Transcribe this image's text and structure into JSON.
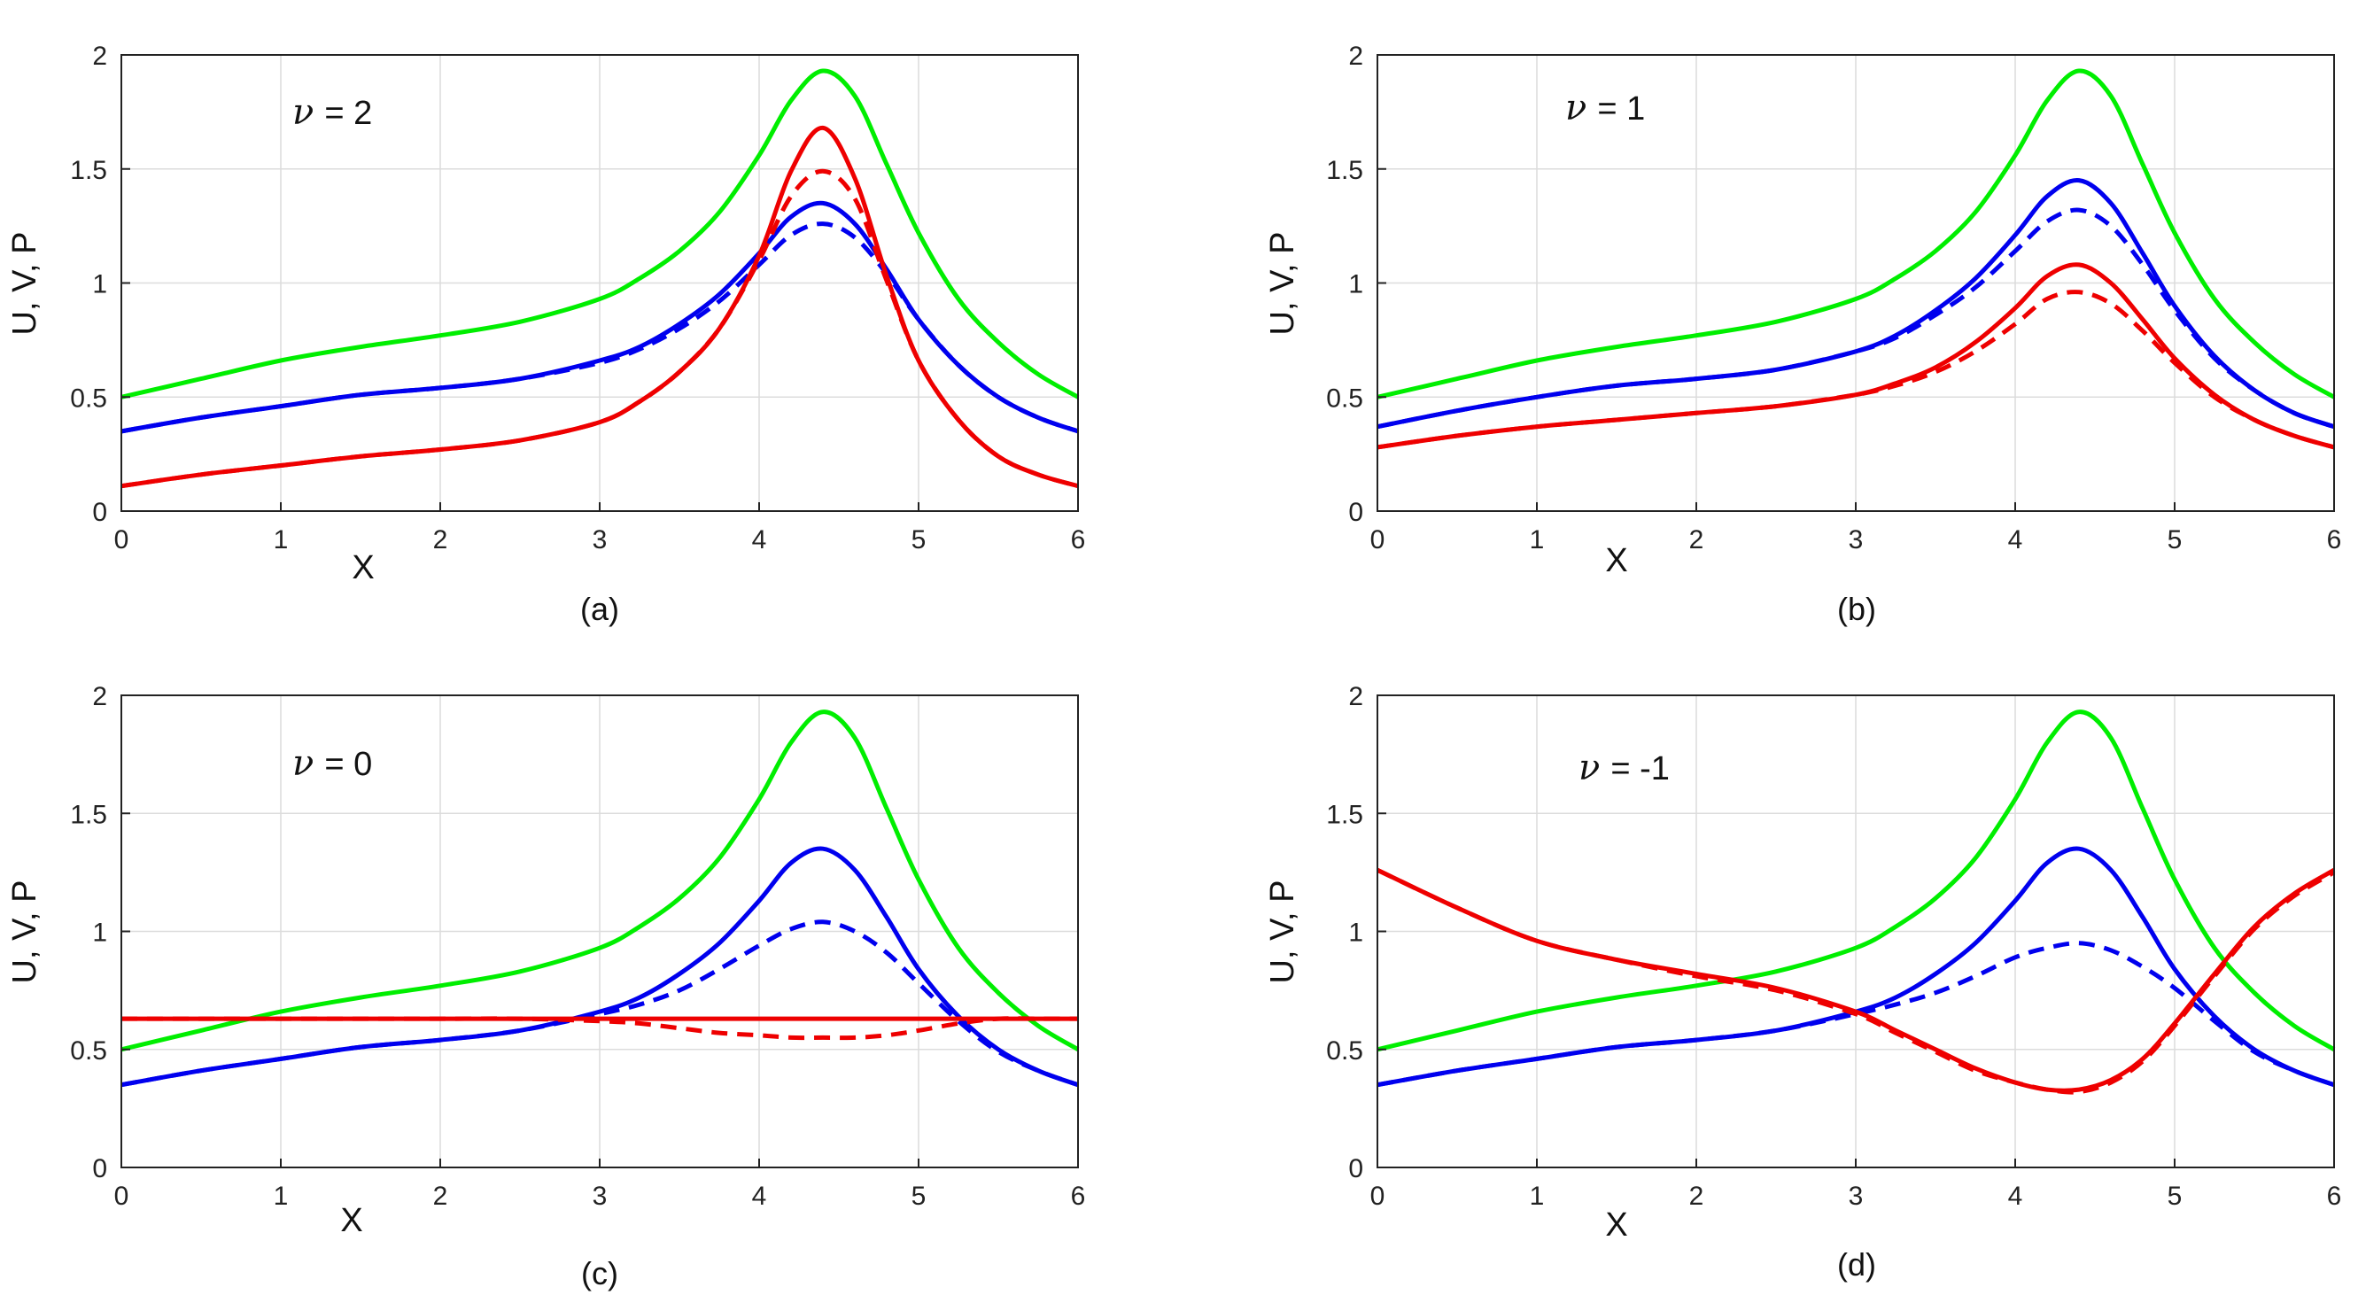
{
  "figure": {
    "colors": {
      "U": "#00ee00",
      "V": "#0000ee",
      "P": "#ee0000",
      "grid": "#dcdcdc",
      "axis": "#222222"
    }
  },
  "chart_data": [
    {
      "type": "line",
      "caption": "(a)",
      "annotation_symbol": "ν",
      "annotation_value": "= 2",
      "xlabel": "X",
      "ylabel": "U, V, P",
      "xlim": [
        0,
        6
      ],
      "ylim": [
        0,
        2
      ],
      "xticks": [
        "0",
        "1",
        "2",
        "3",
        "4",
        "5",
        "6"
      ],
      "yticks": [
        "0",
        "0.5",
        "1",
        "1.5",
        "2"
      ],
      "grid": true,
      "x": [
        0,
        0.5,
        1,
        1.5,
        2,
        2.5,
        3,
        3.25,
        3.5,
        3.75,
        4,
        4.2,
        4.4,
        4.6,
        4.8,
        5,
        5.25,
        5.5,
        5.75,
        6
      ],
      "series": [
        {
          "name": "U",
          "color": "#00ee00",
          "style": "solid",
          "values": [
            0.5,
            0.58,
            0.66,
            0.72,
            0.77,
            0.83,
            0.93,
            1.02,
            1.14,
            1.31,
            1.56,
            1.8,
            1.93,
            1.82,
            1.52,
            1.22,
            0.93,
            0.74,
            0.6,
            0.5
          ]
        },
        {
          "name": "V",
          "color": "#0000ee",
          "style": "solid",
          "values": [
            0.35,
            0.41,
            0.46,
            0.51,
            0.54,
            0.58,
            0.66,
            0.72,
            0.82,
            0.95,
            1.13,
            1.29,
            1.35,
            1.26,
            1.06,
            0.84,
            0.64,
            0.5,
            0.41,
            0.35
          ]
        },
        {
          "name": "V (dashed)",
          "color": "#0000ee",
          "style": "dashed",
          "values": [
            0.35,
            0.41,
            0.46,
            0.51,
            0.54,
            0.58,
            0.65,
            0.71,
            0.8,
            0.92,
            1.08,
            1.21,
            1.26,
            1.2,
            1.04,
            0.84,
            0.64,
            0.5,
            0.41,
            0.35
          ]
        },
        {
          "name": "P",
          "color": "#ee0000",
          "style": "solid",
          "values": [
            0.11,
            0.16,
            0.2,
            0.24,
            0.27,
            0.31,
            0.39,
            0.48,
            0.61,
            0.8,
            1.12,
            1.49,
            1.68,
            1.46,
            1.03,
            0.66,
            0.4,
            0.24,
            0.16,
            0.11
          ]
        },
        {
          "name": "P (dashed)",
          "color": "#ee0000",
          "style": "dashed",
          "values": [
            0.11,
            0.16,
            0.2,
            0.24,
            0.27,
            0.31,
            0.39,
            0.48,
            0.61,
            0.8,
            1.1,
            1.38,
            1.49,
            1.37,
            1.01,
            0.66,
            0.4,
            0.24,
            0.16,
            0.11
          ]
        }
      ]
    },
    {
      "type": "line",
      "caption": "(b)",
      "annotation_symbol": "ν",
      "annotation_value": "= 1",
      "xlabel": "X",
      "ylabel": "U, V, P",
      "xlim": [
        0,
        6
      ],
      "ylim": [
        0,
        2
      ],
      "xticks": [
        "0",
        "1",
        "2",
        "3",
        "4",
        "5",
        "6"
      ],
      "yticks": [
        "0",
        "0.5",
        "1",
        "1.5",
        "2"
      ],
      "grid": true,
      "x": [
        0,
        0.5,
        1,
        1.5,
        2,
        2.5,
        3,
        3.25,
        3.5,
        3.75,
        4,
        4.2,
        4.4,
        4.6,
        4.8,
        5,
        5.25,
        5.5,
        5.75,
        6
      ],
      "series": [
        {
          "name": "U",
          "color": "#00ee00",
          "style": "solid",
          "values": [
            0.5,
            0.58,
            0.66,
            0.72,
            0.77,
            0.83,
            0.93,
            1.02,
            1.14,
            1.31,
            1.56,
            1.8,
            1.93,
            1.82,
            1.52,
            1.22,
            0.93,
            0.74,
            0.6,
            0.5
          ]
        },
        {
          "name": "V",
          "color": "#0000ee",
          "style": "solid",
          "values": [
            0.37,
            0.44,
            0.5,
            0.55,
            0.58,
            0.62,
            0.7,
            0.77,
            0.88,
            1.02,
            1.21,
            1.38,
            1.45,
            1.35,
            1.13,
            0.9,
            0.68,
            0.53,
            0.43,
            0.37
          ]
        },
        {
          "name": "V (dashed)",
          "color": "#0000ee",
          "style": "dashed",
          "values": [
            0.37,
            0.44,
            0.5,
            0.55,
            0.58,
            0.62,
            0.7,
            0.76,
            0.86,
            0.98,
            1.14,
            1.27,
            1.32,
            1.25,
            1.08,
            0.88,
            0.67,
            0.53,
            0.43,
            0.37
          ]
        },
        {
          "name": "P",
          "color": "#ee0000",
          "style": "solid",
          "values": [
            0.28,
            0.33,
            0.37,
            0.4,
            0.43,
            0.46,
            0.51,
            0.56,
            0.63,
            0.74,
            0.89,
            1.03,
            1.08,
            1.0,
            0.84,
            0.67,
            0.51,
            0.4,
            0.33,
            0.28
          ]
        },
        {
          "name": "P (dashed)",
          "color": "#ee0000",
          "style": "dashed",
          "values": [
            0.28,
            0.33,
            0.37,
            0.4,
            0.43,
            0.46,
            0.51,
            0.55,
            0.61,
            0.7,
            0.82,
            0.93,
            0.96,
            0.91,
            0.79,
            0.65,
            0.5,
            0.4,
            0.33,
            0.28
          ]
        }
      ]
    },
    {
      "type": "line",
      "caption": "(c)",
      "annotation_symbol": "ν",
      "annotation_value": "= 0",
      "xlabel": "X",
      "ylabel": "U, V, P",
      "xlim": [
        0,
        6
      ],
      "ylim": [
        0,
        2
      ],
      "xticks": [
        "0",
        "1",
        "2",
        "3",
        "4",
        "5",
        "6"
      ],
      "yticks": [
        "0",
        "0.5",
        "1",
        "1.5",
        "2"
      ],
      "grid": true,
      "x": [
        0,
        0.5,
        1,
        1.5,
        2,
        2.5,
        3,
        3.25,
        3.5,
        3.75,
        4,
        4.2,
        4.4,
        4.6,
        4.8,
        5,
        5.25,
        5.5,
        5.75,
        6
      ],
      "series": [
        {
          "name": "U",
          "color": "#00ee00",
          "style": "solid",
          "values": [
            0.5,
            0.58,
            0.66,
            0.72,
            0.77,
            0.83,
            0.93,
            1.02,
            1.14,
            1.31,
            1.56,
            1.8,
            1.93,
            1.82,
            1.52,
            1.22,
            0.93,
            0.74,
            0.6,
            0.5
          ]
        },
        {
          "name": "V",
          "color": "#0000ee",
          "style": "solid",
          "values": [
            0.35,
            0.41,
            0.46,
            0.51,
            0.54,
            0.58,
            0.66,
            0.72,
            0.82,
            0.95,
            1.13,
            1.29,
            1.35,
            1.26,
            1.06,
            0.84,
            0.64,
            0.5,
            0.41,
            0.35
          ]
        },
        {
          "name": "V (dashed)",
          "color": "#0000ee",
          "style": "dashed",
          "values": [
            0.35,
            0.41,
            0.46,
            0.51,
            0.54,
            0.58,
            0.65,
            0.69,
            0.75,
            0.84,
            0.94,
            1.01,
            1.04,
            1.0,
            0.91,
            0.78,
            0.62,
            0.49,
            0.41,
            0.35
          ]
        },
        {
          "name": "P",
          "color": "#ee0000",
          "style": "solid",
          "values": [
            0.63,
            0.63,
            0.63,
            0.63,
            0.63,
            0.63,
            0.63,
            0.63,
            0.63,
            0.63,
            0.63,
            0.63,
            0.63,
            0.63,
            0.63,
            0.63,
            0.63,
            0.63,
            0.63,
            0.63
          ]
        },
        {
          "name": "P (dashed)",
          "color": "#ee0000",
          "style": "dashed",
          "values": [
            0.63,
            0.63,
            0.63,
            0.63,
            0.63,
            0.63,
            0.62,
            0.61,
            0.59,
            0.57,
            0.56,
            0.55,
            0.55,
            0.55,
            0.56,
            0.58,
            0.61,
            0.63,
            0.63,
            0.63
          ]
        }
      ]
    },
    {
      "type": "line",
      "caption": "(d)",
      "annotation_symbol": "ν",
      "annotation_value": "= -1",
      "xlabel": "X",
      "ylabel": "U, V, P",
      "xlim": [
        0,
        6
      ],
      "ylim": [
        0,
        2
      ],
      "xticks": [
        "0",
        "1",
        "2",
        "3",
        "4",
        "5",
        "6"
      ],
      "yticks": [
        "0",
        "0.5",
        "1",
        "1.5",
        "2"
      ],
      "grid": true,
      "x": [
        0,
        0.5,
        1,
        1.5,
        2,
        2.5,
        3,
        3.25,
        3.5,
        3.75,
        4,
        4.2,
        4.4,
        4.6,
        4.8,
        5,
        5.25,
        5.5,
        5.75,
        6
      ],
      "series": [
        {
          "name": "U",
          "color": "#00ee00",
          "style": "solid",
          "values": [
            0.5,
            0.58,
            0.66,
            0.72,
            0.77,
            0.83,
            0.93,
            1.02,
            1.14,
            1.31,
            1.56,
            1.8,
            1.93,
            1.82,
            1.52,
            1.22,
            0.93,
            0.74,
            0.6,
            0.5
          ]
        },
        {
          "name": "V",
          "color": "#0000ee",
          "style": "solid",
          "values": [
            0.35,
            0.41,
            0.46,
            0.51,
            0.54,
            0.58,
            0.66,
            0.72,
            0.82,
            0.95,
            1.13,
            1.29,
            1.35,
            1.26,
            1.06,
            0.84,
            0.64,
            0.5,
            0.41,
            0.35
          ]
        },
        {
          "name": "V (dashed)",
          "color": "#0000ee",
          "style": "dashed",
          "values": [
            0.35,
            0.41,
            0.46,
            0.51,
            0.54,
            0.58,
            0.65,
            0.69,
            0.74,
            0.81,
            0.89,
            0.93,
            0.95,
            0.92,
            0.85,
            0.76,
            0.62,
            0.49,
            0.41,
            0.35
          ]
        },
        {
          "name": "P",
          "color": "#ee0000",
          "style": "solid",
          "values": [
            1.26,
            1.1,
            0.96,
            0.88,
            0.82,
            0.76,
            0.66,
            0.58,
            0.5,
            0.42,
            0.36,
            0.33,
            0.33,
            0.37,
            0.46,
            0.61,
            0.82,
            1.02,
            1.16,
            1.26
          ]
        },
        {
          "name": "P (dashed)",
          "color": "#ee0000",
          "style": "dashed",
          "values": [
            1.26,
            1.1,
            0.96,
            0.88,
            0.81,
            0.75,
            0.65,
            0.57,
            0.49,
            0.41,
            0.36,
            0.33,
            0.32,
            0.36,
            0.45,
            0.6,
            0.81,
            1.01,
            1.15,
            1.25
          ]
        }
      ]
    }
  ]
}
